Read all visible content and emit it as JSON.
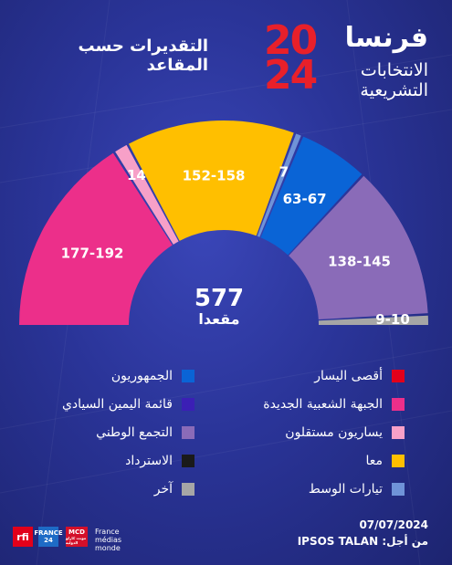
{
  "header": {
    "country": "فرنسا",
    "year_top": "20",
    "year_bottom": "24",
    "election_line1": "الانتخابات",
    "election_line2": "التشريعية",
    "chart_title": "التقديرات حسب المقاعد"
  },
  "total": {
    "value": "577",
    "label": "مقعدا"
  },
  "chart_data": {
    "type": "pie",
    "subtype": "parliament-hemicycle",
    "title": "التقديرات حسب المقاعد",
    "total_seats": 577,
    "segments": [
      {
        "label": "الجبهة الشعبية الجديدة",
        "range": "177-192",
        "low": 177,
        "high": 192,
        "value": 184.5,
        "color": "#ec2f8a"
      },
      {
        "label": "يساريون مستقلون",
        "range": "14",
        "value": 14,
        "color": "#f7a0c8"
      },
      {
        "label": "معا",
        "range": "152-158",
        "low": 152,
        "high": 158,
        "value": 155,
        "color": "#ffbf00"
      },
      {
        "label": "تيارات الوسط",
        "range": "7",
        "value": 7,
        "color": "#6f93d8"
      },
      {
        "label": "الجمهوريون",
        "range": "63-67",
        "low": 63,
        "high": 67,
        "value": 65,
        "color": "#0a64d6"
      },
      {
        "label": "التجمع الوطني",
        "range": "138-145",
        "low": 138,
        "high": 145,
        "value": 141.5,
        "color": "#8a6bb8"
      },
      {
        "label": "آخر",
        "range": "9-10",
        "low": 9,
        "high": 10,
        "value": 9.5,
        "color": "#a6a6a6"
      }
    ],
    "legend_position": "bottom"
  },
  "legend": {
    "right_column": [
      {
        "label": "أقصى اليسار",
        "color": "#e2001a"
      },
      {
        "label": "الجبهة الشعبية الجديدة",
        "color": "#ec2f8a"
      },
      {
        "label": "يساريون مستقلون",
        "color": "#f7a0c8"
      },
      {
        "label": "معا",
        "color": "#ffbf00"
      },
      {
        "label": "تيارات الوسط",
        "color": "#6f93d8"
      }
    ],
    "left_column": [
      {
        "label": "الجمهوريون",
        "color": "#0a64d6"
      },
      {
        "label": "قائمة اليمين السيادي",
        "color": "#3b1fb5"
      },
      {
        "label": "التجمع الوطني",
        "color": "#8a6bb8"
      },
      {
        "label": "الاسترداد",
        "color": "#1a1a1a"
      },
      {
        "label": "آخر",
        "color": "#a6a6a6"
      }
    ]
  },
  "footer": {
    "date": "07/07/2024",
    "source": "من أجل: IPSOS TALAN",
    "logo_rfi": "rfi",
    "logo_f24_top": "FRANCE",
    "logo_f24_bottom": "24",
    "logo_mcd_top": "MCD",
    "logo_mcd_bottom": "مونت كارلو الدولية",
    "logo_fmm_1": "France",
    "logo_fmm_2": "médias",
    "logo_fmm_3": "monde"
  }
}
